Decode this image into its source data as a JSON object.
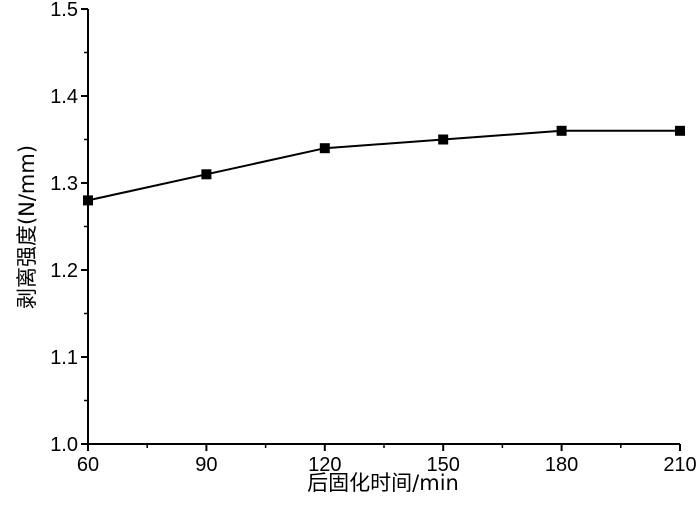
{
  "chart_data": {
    "type": "line",
    "title": "",
    "xlabel": "后固化时间/min",
    "ylabel": "剥离强度(N/mm)",
    "x": [
      60,
      90,
      120,
      150,
      180,
      210
    ],
    "series": [
      {
        "values": [
          1.28,
          1.31,
          1.34,
          1.35,
          1.36,
          1.36
        ]
      }
    ],
    "xlim": [
      60,
      210
    ],
    "ylim": [
      1.0,
      1.5
    ],
    "xticks": [
      60,
      90,
      120,
      150,
      180,
      210
    ],
    "xtick_labels": [
      "60",
      "90",
      "120",
      "150",
      "180",
      "210"
    ],
    "yticks": [
      1.0,
      1.1,
      1.2,
      1.3,
      1.4,
      1.5
    ],
    "ytick_labels": [
      "1.0",
      "1.1",
      "1.2",
      "1.3",
      "1.4",
      "1.5"
    ],
    "marker": "square",
    "grid": false,
    "legend": "none",
    "line_color": "#000000"
  }
}
